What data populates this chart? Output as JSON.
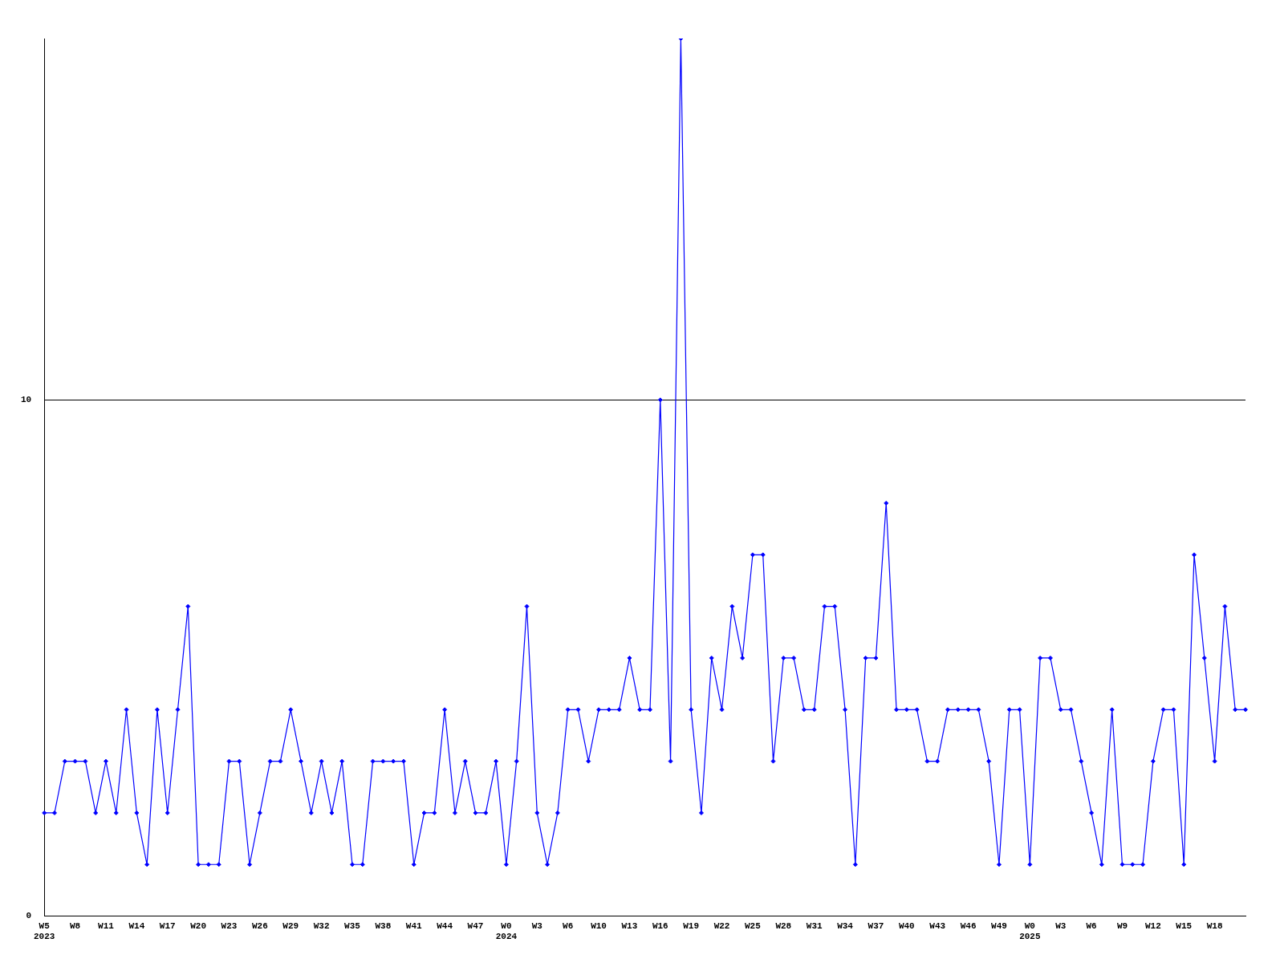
{
  "chart_data": {
    "type": "line",
    "categories": [
      "W5\n2023",
      null,
      null,
      "W8",
      null,
      null,
      "W11",
      null,
      null,
      "W14",
      null,
      null,
      "W17",
      null,
      null,
      "W20",
      null,
      null,
      "W23",
      null,
      null,
      "W26",
      null,
      null,
      "W29",
      null,
      null,
      "W32",
      null,
      null,
      "W35",
      null,
      null,
      "W38",
      null,
      null,
      "W41",
      null,
      null,
      "W44",
      null,
      null,
      "W47",
      null,
      null,
      "W0\n2024",
      null,
      null,
      "W3",
      null,
      null,
      "W6",
      null,
      null,
      "W10",
      null,
      null,
      "W13",
      null,
      null,
      "W16",
      null,
      null,
      "W19",
      null,
      null,
      "W22",
      null,
      null,
      "W25",
      null,
      null,
      "W28",
      null,
      null,
      "W31",
      null,
      null,
      "W34",
      null,
      null,
      "W37",
      null,
      null,
      "W40",
      null,
      null,
      "W43",
      null,
      null,
      "W46",
      null,
      null,
      "W49",
      null,
      null,
      "W0\n2025",
      null,
      null,
      "W3",
      null,
      null,
      "W6",
      null,
      null,
      "W9",
      null,
      null,
      "W12",
      null,
      null,
      "W15",
      null,
      null,
      "W18",
      null,
      null,
      null
    ],
    "series": [
      {
        "color": "#0000ff",
        "values": [
          2,
          2,
          3,
          3,
          3,
          2,
          3,
          2,
          4,
          2,
          1,
          4,
          2,
          4,
          6,
          1,
          1,
          1,
          3,
          3,
          1,
          2,
          3,
          3,
          4,
          3,
          2,
          3,
          2,
          3,
          1,
          1,
          3,
          3,
          3,
          3,
          1,
          2,
          2,
          4,
          2,
          3,
          2,
          2,
          3,
          1,
          3,
          6,
          2,
          1,
          2,
          4,
          4,
          3,
          4,
          4,
          4,
          5,
          4,
          4,
          10,
          3,
          17,
          4,
          2,
          5,
          4,
          6,
          5,
          7,
          7,
          3,
          5,
          5,
          4,
          4,
          6,
          6,
          4,
          1,
          5,
          5,
          8,
          4,
          4,
          4,
          3,
          3,
          4,
          4,
          4,
          4,
          3,
          1,
          4,
          4,
          1,
          5,
          5,
          4,
          4,
          3,
          2,
          1,
          4,
          1,
          1,
          1,
          3,
          4,
          4,
          1,
          7,
          5,
          3,
          6,
          4,
          4
        ]
      }
    ],
    "ylim": [
      0,
      17
    ],
    "yticks": [
      0,
      10
    ],
    "grid": "y",
    "legend": false,
    "marker": "diamond",
    "line_style": "solid"
  }
}
